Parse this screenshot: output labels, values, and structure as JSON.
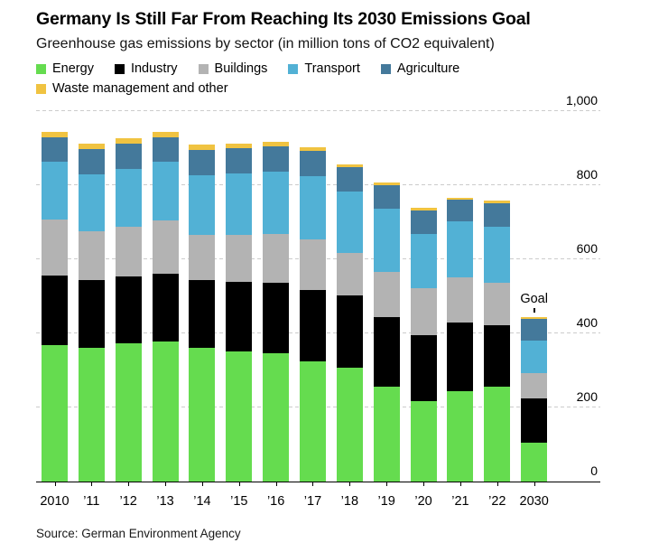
{
  "header": {
    "title": "Germany Is Still Far From Reaching Its 2030 Emissions Goal",
    "subtitle": "Greenhouse gas emissions by sector (in million tons of CO2 equivalent)"
  },
  "chart_data": {
    "type": "bar",
    "stacked": true,
    "title": "Germany Is Still Far From Reaching Its 2030 Emissions Goal",
    "subtitle": "Greenhouse gas emissions by sector (in million tons of CO2 equivalent)",
    "unit": "million tons of CO2 equivalent",
    "categories": [
      "2010",
      "’11",
      "’12",
      "’13",
      "’14",
      "’15",
      "’16",
      "’17",
      "’18",
      "’19",
      "’20",
      "’21",
      "’22",
      "2030"
    ],
    "series": [
      {
        "name": "Energy",
        "color": "#65DC4F",
        "values": [
          369,
          360,
          373,
          379,
          361,
          351,
          346,
          325,
          307,
          257,
          216,
          243,
          256,
          104
        ]
      },
      {
        "name": "Industry",
        "color": "#000000",
        "values": [
          188,
          184,
          181,
          182,
          183,
          187,
          191,
          192,
          195,
          186,
          179,
          186,
          166,
          120
        ]
      },
      {
        "name": "Buildings",
        "color": "#B3B3B3",
        "values": [
          150,
          131,
          134,
          144,
          123,
          129,
          132,
          137,
          116,
          124,
          127,
          122,
          115,
          68
        ]
      },
      {
        "name": "Transport",
        "color": "#52B1D5",
        "values": [
          156,
          155,
          157,
          159,
          161,
          165,
          168,
          171,
          166,
          169,
          147,
          151,
          151,
          88
        ]
      },
      {
        "name": "Agriculture",
        "color": "#44799B",
        "values": [
          66,
          67,
          67,
          66,
          68,
          68,
          68,
          68,
          64,
          63,
          63,
          58,
          64,
          58
        ]
      },
      {
        "name": "Waste management and other",
        "color": "#F0C341",
        "values": [
          16,
          15,
          14,
          13,
          13,
          12,
          12,
          10,
          8,
          8,
          7,
          7,
          6,
          5
        ]
      }
    ],
    "ylim": [
      0,
      1000
    ],
    "yticks": [
      {
        "value": 0,
        "label": "0"
      },
      {
        "value": 200,
        "label": "200"
      },
      {
        "value": 400,
        "label": "400"
      },
      {
        "value": 600,
        "label": "600"
      },
      {
        "value": 800,
        "label": "800"
      },
      {
        "value": 1000,
        "label": "1,000"
      }
    ],
    "grid": "horizontal-dashed",
    "legend_position": "top",
    "annotation": {
      "text": "Goal",
      "category": "2030"
    }
  },
  "source": "Source: German Environment Agency"
}
